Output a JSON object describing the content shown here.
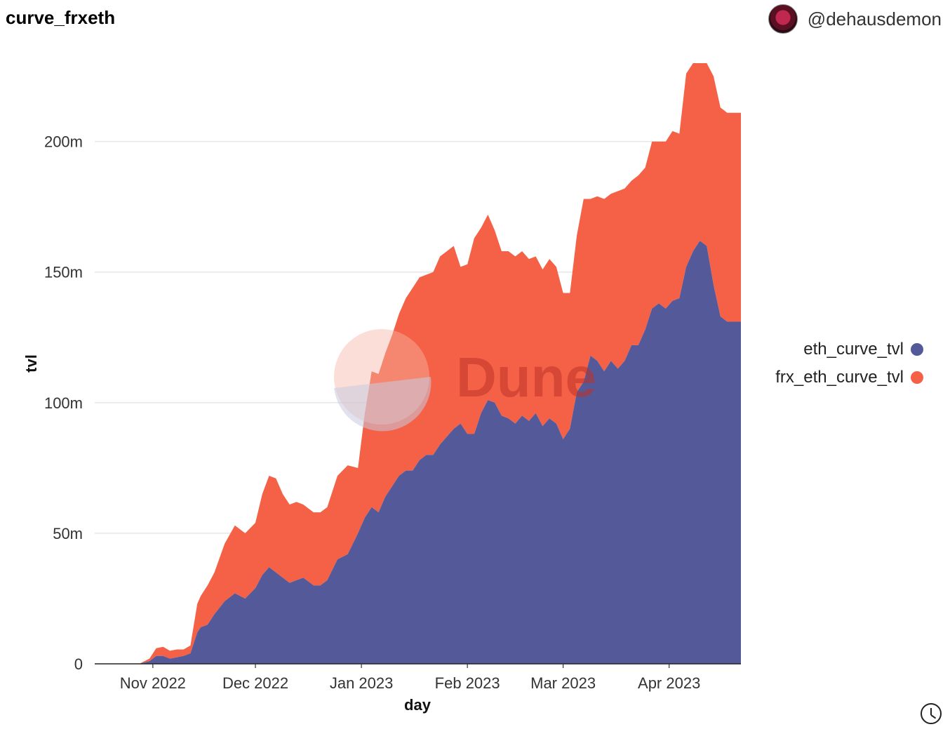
{
  "header": {
    "title": "curve_frxeth",
    "author": "@dehausdemon"
  },
  "colors": {
    "eth": "#545a99",
    "frx": "#f46146",
    "grid": "#e6e6e6"
  },
  "watermark": "Dune",
  "chart_data": {
    "type": "area",
    "stacked": true,
    "xlabel": "day",
    "ylabel": "tvl",
    "ylim": [
      0,
      230000000
    ],
    "yticks": [
      0,
      50000000,
      100000000,
      150000000,
      200000000
    ],
    "ytick_labels": [
      "0",
      "50m",
      "100m",
      "150m",
      "200m"
    ],
    "xticks": [
      "2022-11-01",
      "2022-12-01",
      "2023-01-01",
      "2023-02-01",
      "2023-03-01",
      "2023-04-01"
    ],
    "xtick_labels": [
      "Nov 2022",
      "Dec 2022",
      "Jan 2023",
      "Feb 2023",
      "Mar 2023",
      "Apr 2023"
    ],
    "legend_position": "right",
    "x": [
      "2022-10-15",
      "2022-10-20",
      "2022-10-25",
      "2022-10-28",
      "2022-10-31",
      "2022-11-02",
      "2022-11-04",
      "2022-11-06",
      "2022-11-08",
      "2022-11-10",
      "2022-11-12",
      "2022-11-14",
      "2022-11-15",
      "2022-11-17",
      "2022-11-19",
      "2022-11-22",
      "2022-11-25",
      "2022-11-28",
      "2022-12-01",
      "2022-12-03",
      "2022-12-05",
      "2022-12-07",
      "2022-12-09",
      "2022-12-11",
      "2022-12-13",
      "2022-12-15",
      "2022-12-18",
      "2022-12-20",
      "2022-12-22",
      "2022-12-25",
      "2022-12-28",
      "2022-12-31",
      "2023-01-02",
      "2023-01-04",
      "2023-01-06",
      "2023-01-08",
      "2023-01-10",
      "2023-01-12",
      "2023-01-14",
      "2023-01-16",
      "2023-01-18",
      "2023-01-20",
      "2023-01-22",
      "2023-01-24",
      "2023-01-26",
      "2023-01-28",
      "2023-01-30",
      "2023-02-01",
      "2023-02-03",
      "2023-02-05",
      "2023-02-07",
      "2023-02-09",
      "2023-02-11",
      "2023-02-13",
      "2023-02-15",
      "2023-02-17",
      "2023-02-19",
      "2023-02-21",
      "2023-02-23",
      "2023-02-25",
      "2023-02-27",
      "2023-03-01",
      "2023-03-03",
      "2023-03-05",
      "2023-03-07",
      "2023-03-09",
      "2023-03-11",
      "2023-03-13",
      "2023-03-15",
      "2023-03-17",
      "2023-03-19",
      "2023-03-21",
      "2023-03-23",
      "2023-03-25",
      "2023-03-27",
      "2023-03-29",
      "2023-03-31",
      "2023-04-02",
      "2023-04-04",
      "2023-04-06",
      "2023-04-08",
      "2023-04-10",
      "2023-04-12",
      "2023-04-14",
      "2023-04-16",
      "2023-04-18",
      "2023-04-20",
      "2023-04-22"
    ],
    "series": [
      {
        "name": "eth_curve_tvl",
        "values": [
          0,
          0,
          0,
          0,
          1000000,
          3000000,
          3000000,
          2000000,
          2500000,
          3000000,
          4000000,
          12000000,
          14000000,
          15000000,
          19000000,
          24000000,
          27000000,
          25000000,
          29000000,
          34000000,
          37000000,
          35000000,
          33000000,
          31000000,
          32000000,
          33000000,
          30000000,
          30000000,
          32000000,
          40000000,
          42000000,
          50000000,
          56000000,
          60000000,
          58000000,
          64000000,
          68000000,
          72000000,
          74000000,
          74000000,
          78000000,
          80000000,
          80000000,
          84000000,
          87000000,
          90000000,
          92000000,
          88000000,
          88000000,
          96000000,
          101000000,
          100000000,
          95000000,
          94000000,
          92000000,
          95000000,
          93000000,
          96000000,
          91000000,
          94000000,
          92000000,
          86000000,
          90000000,
          104000000,
          108000000,
          118000000,
          116000000,
          112000000,
          116000000,
          113000000,
          116000000,
          122000000,
          122000000,
          128000000,
          136000000,
          138000000,
          136000000,
          139000000,
          140000000,
          152000000,
          158000000,
          162000000,
          160000000,
          145000000,
          133000000,
          131000000,
          131000000,
          131000000
        ]
      },
      {
        "name": "frx_eth_curve_tvl",
        "values": [
          0,
          0,
          0,
          0,
          1000000,
          3000000,
          3500000,
          3000000,
          3000000,
          2500000,
          3000000,
          11000000,
          12000000,
          15000000,
          16000000,
          22000000,
          26000000,
          25000000,
          25000000,
          31000000,
          35000000,
          36000000,
          32000000,
          30000000,
          30000000,
          28000000,
          28000000,
          28000000,
          28000000,
          32000000,
          34000000,
          25000000,
          40000000,
          52000000,
          53000000,
          55000000,
          58000000,
          62000000,
          66000000,
          70000000,
          70000000,
          69000000,
          70000000,
          72000000,
          71000000,
          70000000,
          60000000,
          65000000,
          75000000,
          71000000,
          71000000,
          66000000,
          63000000,
          64000000,
          64000000,
          63000000,
          62000000,
          60000000,
          60000000,
          61000000,
          60000000,
          56000000,
          52000000,
          60000000,
          70000000,
          60000000,
          63000000,
          66000000,
          64000000,
          68000000,
          66000000,
          63000000,
          65000000,
          62000000,
          64000000,
          62000000,
          64000000,
          65000000,
          63000000,
          74000000,
          72000000,
          68000000,
          70000000,
          80000000,
          80000000,
          80000000,
          80000000,
          80000000
        ]
      }
    ]
  }
}
